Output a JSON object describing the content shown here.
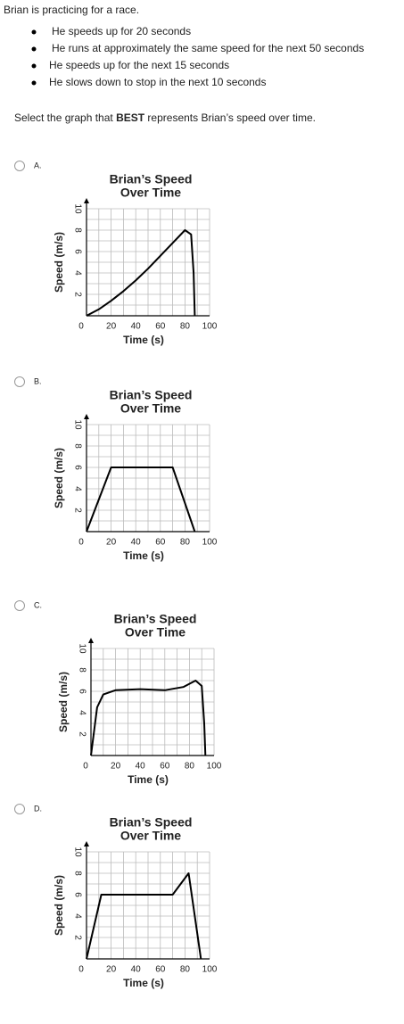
{
  "intro": "Brian is practicing for a race.",
  "bullets": [
    "He speeds up for 20 seconds",
    "He runs at approximately the same speed for the next 50 seconds",
    "He speeds up for the next 15 seconds",
    "He slows down to stop in the next 10 seconds"
  ],
  "prompt": {
    "before": "Select the graph that ",
    "bold": "BEST",
    "after": " represents Brian’s speed over time."
  },
  "options": [
    {
      "label": "A.",
      "chart": {
        "type": "line",
        "title": [
          "Brian’s Speed",
          "Over Time"
        ],
        "x_label": "Time (s)",
        "y_label": "Speed (m/s)",
        "xlim": [
          0,
          100
        ],
        "ylim": [
          0,
          10
        ],
        "xticks": [
          0,
          20,
          40,
          60,
          80,
          100
        ],
        "yticks": [
          2,
          4,
          6,
          8,
          10
        ],
        "color": "#000000",
        "x": [
          0,
          10,
          20,
          30,
          40,
          50,
          60,
          70,
          80,
          85,
          87,
          88
        ],
        "y": [
          0,
          0.6,
          1.4,
          2.3,
          3.3,
          4.4,
          5.6,
          6.8,
          8,
          7.6,
          4,
          0
        ]
      }
    },
    {
      "label": "B.",
      "chart": {
        "type": "line",
        "title": [
          "Brian’s Speed",
          "Over Time"
        ],
        "x_label": "Time (s)",
        "y_label": "Speed (m/s)",
        "xlim": [
          0,
          100
        ],
        "ylim": [
          0,
          10
        ],
        "xticks": [
          0,
          20,
          40,
          60,
          80,
          100
        ],
        "yticks": [
          2,
          4,
          6,
          8,
          10
        ],
        "color": "#000000",
        "x": [
          0,
          20,
          70,
          88
        ],
        "y": [
          0,
          6,
          6,
          0
        ]
      }
    },
    {
      "label": "C.",
      "chart": {
        "type": "line",
        "title": [
          "Brian’s Speed",
          "Over Time"
        ],
        "x_label": "Time (s)",
        "y_label": "Speed (m/s)",
        "xlim": [
          0,
          100
        ],
        "ylim": [
          0,
          10
        ],
        "xticks": [
          0,
          20,
          40,
          60,
          80,
          100
        ],
        "yticks": [
          2,
          4,
          6,
          8,
          10
        ],
        "color": "#000000",
        "x": [
          0,
          5,
          10,
          20,
          40,
          60,
          75,
          85,
          90,
          92,
          93
        ],
        "y": [
          0,
          4.5,
          5.7,
          6.1,
          6.2,
          6.1,
          6.4,
          7,
          6.5,
          3,
          0
        ]
      }
    },
    {
      "label": "D.",
      "chart": {
        "type": "line",
        "title": [
          "Brian’s Speed",
          "Over Time"
        ],
        "x_label": "Time (s)",
        "y_label": "Speed (m/s)",
        "xlim": [
          0,
          100
        ],
        "ylim": [
          0,
          10
        ],
        "xticks": [
          0,
          20,
          40,
          60,
          80,
          100
        ],
        "yticks": [
          2,
          4,
          6,
          8,
          10
        ],
        "color": "#000000",
        "x": [
          0,
          12,
          70,
          83,
          93
        ],
        "y": [
          0,
          6,
          6,
          8,
          0
        ]
      }
    }
  ]
}
